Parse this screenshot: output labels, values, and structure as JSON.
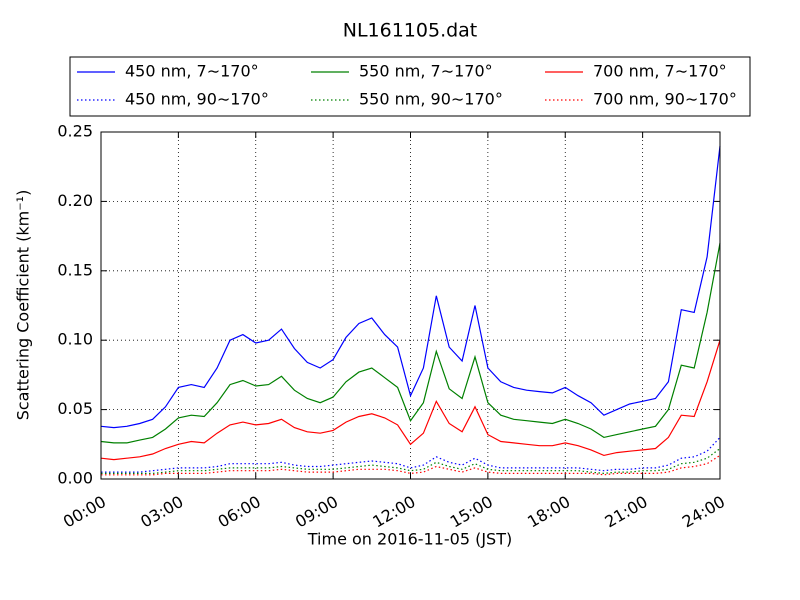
{
  "chart_data": {
    "type": "line",
    "title": "NL161105.dat",
    "x_label": "Time on 2016-11-05 (JST)",
    "y_label": "Scattering Coefficient (km⁻¹)",
    "x": [
      0,
      0.5,
      1,
      1.5,
      2,
      2.5,
      3,
      3.5,
      4,
      4.5,
      5,
      5.5,
      6,
      6.5,
      7,
      7.5,
      8,
      8.5,
      9,
      9.5,
      10,
      10.5,
      11,
      11.5,
      12,
      12.5,
      13,
      13.5,
      14,
      14.5,
      15,
      15.5,
      16,
      16.5,
      17,
      17.5,
      18,
      18.5,
      19,
      19.5,
      20,
      20.5,
      21,
      21.5,
      22,
      22.5,
      23,
      23.5,
      24
    ],
    "xlim": [
      0,
      24
    ],
    "xticks": [
      {
        "value": 0,
        "label": "00:00"
      },
      {
        "value": 3,
        "label": "03:00"
      },
      {
        "value": 6,
        "label": "06:00"
      },
      {
        "value": 9,
        "label": "09:00"
      },
      {
        "value": 12,
        "label": "12:00"
      },
      {
        "value": 15,
        "label": "15:00"
      },
      {
        "value": 18,
        "label": "18:00"
      },
      {
        "value": 21,
        "label": "21:00"
      },
      {
        "value": 24,
        "label": "24:00"
      }
    ],
    "ylim": [
      0,
      0.25
    ],
    "yticks": [
      {
        "value": 0,
        "label": "0.00"
      },
      0.05,
      {
        "value": 0.1,
        "label": "0.10"
      },
      0.15,
      {
        "value": 0.2,
        "label": "0.20"
      },
      0.25
    ],
    "grid": true,
    "legend_position": "top",
    "series": [
      {
        "name": "450 nm, 7∼170°",
        "color": "#0000ff",
        "linestyle": "solid",
        "values": [
          0.038,
          0.037,
          0.038,
          0.04,
          0.043,
          0.052,
          0.066,
          0.068,
          0.066,
          0.08,
          0.1,
          0.104,
          0.098,
          0.1,
          0.108,
          0.094,
          0.084,
          0.08,
          0.086,
          0.102,
          0.112,
          0.116,
          0.104,
          0.095,
          0.06,
          0.08,
          0.132,
          0.095,
          0.085,
          0.125,
          0.08,
          0.07,
          0.066,
          0.064,
          0.063,
          0.062,
          0.066,
          0.06,
          0.055,
          0.046,
          0.05,
          0.054,
          0.056,
          0.058,
          0.07,
          0.122,
          0.12,
          0.16,
          0.24
        ]
      },
      {
        "name": "450 nm, 90∼170°",
        "color": "#0000ff",
        "linestyle": "dotted",
        "values": [
          0.005,
          0.005,
          0.005,
          0.005,
          0.006,
          0.007,
          0.008,
          0.008,
          0.008,
          0.009,
          0.011,
          0.011,
          0.011,
          0.011,
          0.012,
          0.01,
          0.009,
          0.009,
          0.01,
          0.011,
          0.012,
          0.013,
          0.012,
          0.011,
          0.008,
          0.01,
          0.016,
          0.012,
          0.01,
          0.015,
          0.01,
          0.008,
          0.008,
          0.008,
          0.008,
          0.008,
          0.008,
          0.008,
          0.007,
          0.006,
          0.007,
          0.007,
          0.008,
          0.008,
          0.01,
          0.015,
          0.016,
          0.02,
          0.03
        ]
      },
      {
        "name": "550 nm, 7∼170°",
        "color": "#008000",
        "linestyle": "solid",
        "values": [
          0.027,
          0.026,
          0.026,
          0.028,
          0.03,
          0.036,
          0.044,
          0.046,
          0.045,
          0.055,
          0.068,
          0.071,
          0.067,
          0.068,
          0.074,
          0.064,
          0.058,
          0.055,
          0.059,
          0.07,
          0.077,
          0.08,
          0.073,
          0.066,
          0.042,
          0.055,
          0.092,
          0.065,
          0.058,
          0.088,
          0.055,
          0.046,
          0.043,
          0.042,
          0.041,
          0.04,
          0.043,
          0.04,
          0.036,
          0.03,
          0.032,
          0.034,
          0.036,
          0.038,
          0.05,
          0.082,
          0.08,
          0.12,
          0.17
        ]
      },
      {
        "name": "550 nm, 90∼170°",
        "color": "#008000",
        "linestyle": "dotted",
        "values": [
          0.004,
          0.004,
          0.004,
          0.004,
          0.004,
          0.005,
          0.006,
          0.006,
          0.006,
          0.007,
          0.008,
          0.008,
          0.008,
          0.008,
          0.009,
          0.008,
          0.007,
          0.007,
          0.007,
          0.008,
          0.009,
          0.01,
          0.009,
          0.008,
          0.006,
          0.007,
          0.012,
          0.009,
          0.007,
          0.011,
          0.007,
          0.006,
          0.006,
          0.006,
          0.006,
          0.006,
          0.006,
          0.006,
          0.005,
          0.004,
          0.005,
          0.005,
          0.006,
          0.006,
          0.007,
          0.011,
          0.012,
          0.015,
          0.022
        ]
      },
      {
        "name": "700 nm, 7∼170°",
        "color": "#ff0000",
        "linestyle": "solid",
        "values": [
          0.015,
          0.014,
          0.015,
          0.016,
          0.018,
          0.022,
          0.025,
          0.027,
          0.026,
          0.033,
          0.039,
          0.041,
          0.039,
          0.04,
          0.043,
          0.037,
          0.034,
          0.033,
          0.035,
          0.041,
          0.045,
          0.047,
          0.044,
          0.039,
          0.025,
          0.033,
          0.056,
          0.04,
          0.034,
          0.052,
          0.032,
          0.027,
          0.026,
          0.025,
          0.024,
          0.024,
          0.026,
          0.024,
          0.021,
          0.017,
          0.019,
          0.02,
          0.021,
          0.022,
          0.03,
          0.046,
          0.045,
          0.07,
          0.1
        ]
      },
      {
        "name": "700 nm, 90∼170°",
        "color": "#ff0000",
        "linestyle": "dotted",
        "values": [
          0.003,
          0.003,
          0.003,
          0.003,
          0.003,
          0.004,
          0.004,
          0.004,
          0.004,
          0.005,
          0.006,
          0.006,
          0.006,
          0.006,
          0.007,
          0.006,
          0.005,
          0.005,
          0.005,
          0.006,
          0.007,
          0.007,
          0.007,
          0.006,
          0.004,
          0.005,
          0.009,
          0.007,
          0.005,
          0.008,
          0.005,
          0.004,
          0.004,
          0.004,
          0.004,
          0.004,
          0.004,
          0.004,
          0.004,
          0.003,
          0.004,
          0.004,
          0.004,
          0.004,
          0.005,
          0.008,
          0.009,
          0.011,
          0.017
        ]
      }
    ]
  }
}
